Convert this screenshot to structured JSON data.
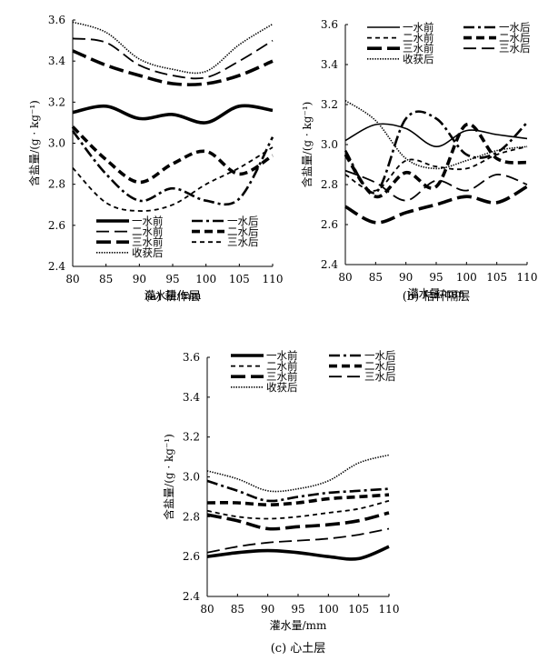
{
  "chart_data": [
    {
      "type": "line",
      "caption": "(a) 耕作层",
      "xlabel": "灌水量/mm",
      "ylabel": "含盐量/(g · kg⁻¹)",
      "xlim": [
        80,
        110
      ],
      "ylim": [
        2.4,
        3.6
      ],
      "xticks": [
        "80",
        "85",
        "90",
        "95",
        "100",
        "105",
        "110"
      ],
      "yticks": [
        "2.4",
        "2.6",
        "2.8",
        "3.0",
        "3.2",
        "3.4",
        "3.6"
      ],
      "grid": false,
      "legend_position": "bottom-center",
      "x": [
        80,
        85,
        90,
        95,
        100,
        105,
        110
      ],
      "series": [
        {
          "name": "一水前",
          "style": "solid-thick",
          "values": [
            3.15,
            3.18,
            3.12,
            3.14,
            3.1,
            3.18,
            3.16
          ]
        },
        {
          "name": "一水后",
          "style": "dashdot",
          "values": [
            3.06,
            2.85,
            2.72,
            2.78,
            2.72,
            2.73,
            3.03
          ]
        },
        {
          "name": "二水前",
          "style": "longdash",
          "values": [
            3.51,
            3.49,
            3.38,
            3.33,
            3.32,
            3.4,
            3.5
          ]
        },
        {
          "name": "二水后",
          "style": "dash-thick",
          "values": [
            3.08,
            2.92,
            2.81,
            2.9,
            2.96,
            2.85,
            2.94
          ]
        },
        {
          "name": "三水前",
          "style": "longdash-thick",
          "values": [
            3.45,
            3.38,
            3.33,
            3.29,
            3.29,
            3.33,
            3.4
          ]
        },
        {
          "name": "三水后",
          "style": "dash",
          "values": [
            2.88,
            2.71,
            2.67,
            2.7,
            2.8,
            2.88,
            2.98
          ]
        },
        {
          "name": "收获后",
          "style": "dotted",
          "values": [
            3.59,
            3.54,
            3.41,
            3.36,
            3.35,
            3.48,
            3.58
          ]
        }
      ]
    },
    {
      "type": "line",
      "caption": "(b) 秸秆隔层",
      "xlabel": "灌水量/mm",
      "ylabel": "含盐量/(g · kg⁻¹)",
      "xlim": [
        80,
        110
      ],
      "ylim": [
        2.4,
        3.6
      ],
      "xticks": [
        "80",
        "85",
        "90",
        "95",
        "100",
        "105",
        "110"
      ],
      "yticks": [
        "2.4",
        "2.6",
        "2.8",
        "3.0",
        "3.2",
        "3.4",
        "3.6"
      ],
      "grid": false,
      "legend_position": "top",
      "x": [
        80,
        85,
        90,
        95,
        100,
        105,
        110
      ],
      "series": [
        {
          "name": "一水前",
          "style": "solid",
          "values": [
            3.02,
            3.1,
            3.08,
            2.99,
            3.07,
            3.05,
            3.03
          ]
        },
        {
          "name": "一水后",
          "style": "dashdot",
          "values": [
            2.97,
            2.76,
            3.13,
            3.13,
            2.95,
            2.96,
            3.11
          ]
        },
        {
          "name": "二水前",
          "style": "dash",
          "values": [
            2.85,
            2.77,
            2.92,
            2.89,
            2.88,
            2.95,
            2.99
          ]
        },
        {
          "name": "二水后",
          "style": "dash-thick",
          "values": [
            2.95,
            2.74,
            2.86,
            2.79,
            3.1,
            2.93,
            2.91
          ]
        },
        {
          "name": "三水前",
          "style": "longdash-thick",
          "values": [
            2.69,
            2.61,
            2.66,
            2.7,
            2.74,
            2.71,
            2.79
          ]
        },
        {
          "name": "三水后",
          "style": "longdash",
          "values": [
            2.87,
            2.81,
            2.72,
            2.82,
            2.77,
            2.85,
            2.8
          ]
        },
        {
          "name": "收获后",
          "style": "dotted",
          "values": [
            3.22,
            3.12,
            2.93,
            2.88,
            2.92,
            2.97,
            2.99
          ]
        }
      ]
    },
    {
      "type": "line",
      "caption": "(c) 心土层",
      "xlabel": "灌水量/mm",
      "ylabel": "含盐量/(g · kg⁻¹)",
      "xlim": [
        80,
        110
      ],
      "ylim": [
        2.4,
        3.6
      ],
      "xticks": [
        "80",
        "85",
        "90",
        "95",
        "100",
        "105",
        "110"
      ],
      "yticks": [
        "2.4",
        "2.6",
        "2.8",
        "3.0",
        "3.2",
        "3.4",
        "3.6"
      ],
      "grid": false,
      "legend_position": "top",
      "x": [
        80,
        85,
        90,
        95,
        100,
        105,
        110
      ],
      "series": [
        {
          "name": "一水前",
          "style": "solid-thick",
          "values": [
            2.6,
            2.62,
            2.63,
            2.62,
            2.6,
            2.59,
            2.65
          ]
        },
        {
          "name": "一水后",
          "style": "dashdot",
          "values": [
            2.98,
            2.93,
            2.88,
            2.9,
            2.92,
            2.93,
            2.94
          ]
        },
        {
          "name": "二水前",
          "style": "dash",
          "values": [
            2.83,
            2.8,
            2.79,
            2.8,
            2.82,
            2.84,
            2.88
          ]
        },
        {
          "name": "二水后",
          "style": "dash-thick",
          "values": [
            2.87,
            2.87,
            2.86,
            2.87,
            2.89,
            2.9,
            2.91
          ]
        },
        {
          "name": "三水前",
          "style": "longdash-thick",
          "values": [
            2.81,
            2.78,
            2.74,
            2.75,
            2.76,
            2.78,
            2.82
          ]
        },
        {
          "name": "三水后",
          "style": "longdash",
          "values": [
            2.62,
            2.65,
            2.67,
            2.68,
            2.69,
            2.71,
            2.74
          ]
        },
        {
          "name": "收获后",
          "style": "dotted",
          "values": [
            3.03,
            2.99,
            2.93,
            2.94,
            2.98,
            3.07,
            3.11
          ]
        }
      ]
    }
  ]
}
